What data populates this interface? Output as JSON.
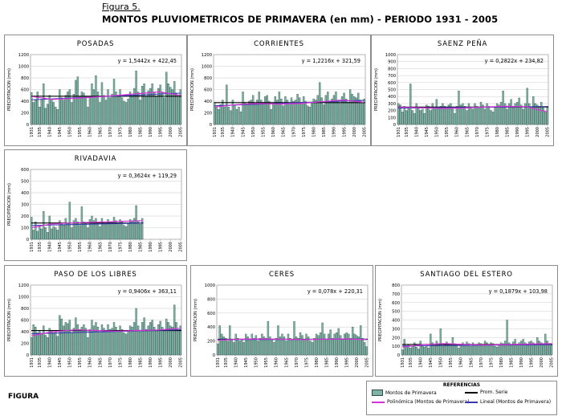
{
  "figure_label": "Figura 5.",
  "title": "MONTOS PLUVIOMETRICOS DE PRIMAVERA (en mm) - PERIODO 1931 - 2005",
  "footer_label": "FIGURA",
  "colors": {
    "bar_fill": "#7fb3a6",
    "bar_stroke": "#2d4e47",
    "mean_line": "#000000",
    "poly_line": "#d633d6",
    "linear_line": "#3a3ab0",
    "grid": "#bfbfbf"
  },
  "legend": {
    "title": "REFERENCIAS",
    "items": [
      {
        "label": "Montos de Primavera",
        "symbol": "bar"
      },
      {
        "label": "Prom. Serie",
        "symbol": "line-black"
      },
      {
        "label": "Polinómica (Montos de Primavera)",
        "symbol": "line-magenta"
      },
      {
        "label": "Lineal (Montos de Primavera)",
        "symbol": "line-blue"
      }
    ]
  },
  "chart_data": [
    {
      "type": "bar",
      "title": "POSADAS",
      "ylabel": "PRECIPITACION (mm)",
      "equation": "y = 1,5442x + 422,45",
      "ylim": [
        0,
        1200
      ],
      "yticks": [
        0,
        200,
        400,
        600,
        800,
        1000,
        1200
      ],
      "xticks": [
        "1931",
        "1935",
        "1940",
        "1945",
        "1950",
        "1955",
        "1960",
        "1965",
        "1970",
        "1975",
        "1980",
        "1985",
        "1990",
        "1995",
        "2000",
        "2005"
      ],
      "start_year": 1931,
      "values": [
        550,
        380,
        420,
        560,
        300,
        430,
        700,
        280,
        350,
        500,
        420,
        380,
        300,
        260,
        600,
        460,
        420,
        500,
        560,
        600,
        380,
        520,
        760,
        820,
        480,
        560,
        540,
        480,
        300,
        480,
        700,
        600,
        840,
        560,
        380,
        720,
        500,
        420,
        600,
        460,
        520,
        780,
        560,
        480,
        600,
        460,
        400,
        380,
        440,
        560,
        500,
        620,
        920,
        560,
        420,
        660,
        700,
        480,
        580,
        620,
        700,
        560,
        480,
        620,
        680,
        560,
        460,
        900,
        700,
        640,
        600,
        740,
        540,
        480,
        600
      ],
      "mean": 485,
      "linear": [
        424,
        538
      ],
      "poly": [
        480,
        430,
        450,
        470,
        500,
        530,
        560,
        500
      ]
    },
    {
      "type": "bar",
      "title": "CORRIENTES",
      "ylabel": "PRECIPITACION (mm)",
      "equation": "y = 1,2216x + 321,59",
      "ylim": [
        0,
        1200
      ],
      "yticks": [
        0,
        200,
        400,
        600,
        800,
        1000,
        1200
      ],
      "xticks": [
        "1931",
        "1935",
        "1940",
        "1945",
        "1950",
        "1955",
        "1960",
        "1965",
        "1970",
        "1975",
        "1980",
        "1985",
        "1990",
        "1995",
        "2000",
        "2005"
      ],
      "start_year": 1931,
      "values": [
        380,
        300,
        260,
        340,
        420,
        300,
        680,
        300,
        240,
        420,
        320,
        260,
        300,
        220,
        560,
        380,
        340,
        400,
        420,
        500,
        340,
        420,
        560,
        420,
        380,
        480,
        500,
        400,
        260,
        360,
        480,
        420,
        560,
        440,
        320,
        480,
        420,
        340,
        460,
        400,
        420,
        520,
        460,
        380,
        480,
        400,
        320,
        300,
        360,
        440,
        420,
        500,
        720,
        460,
        340,
        500,
        560,
        380,
        440,
        500,
        560,
        420,
        360,
        480,
        540,
        440,
        380,
        600,
        520,
        480,
        460,
        540,
        420,
        380,
        440
      ],
      "mean": 375,
      "linear": [
        322,
        414
      ],
      "poly": [
        300,
        340,
        360,
        350,
        360,
        390,
        420,
        380
      ]
    },
    {
      "type": "bar",
      "title": "SAENZ PEÑA",
      "ylabel": "PRECIPITACION (mm)",
      "equation": "y = 0,2822x + 234,82",
      "ylim": [
        0,
        1000
      ],
      "yticks": [
        0,
        100,
        200,
        300,
        400,
        500,
        600,
        700,
        800,
        900,
        1000
      ],
      "xticks": [
        "1931",
        "1935",
        "1940",
        "1945",
        "1950",
        "1955",
        "1960",
        "1965",
        "1970",
        "1975",
        "1980",
        "1985",
        "1990",
        "1995",
        "2000",
        "2005"
      ],
      "start_year": 1931,
      "values": [
        300,
        280,
        180,
        260,
        200,
        240,
        580,
        200,
        160,
        300,
        240,
        200,
        220,
        160,
        280,
        260,
        200,
        300,
        240,
        360,
        220,
        260,
        300,
        260,
        240,
        280,
        300,
        240,
        160,
        260,
        480,
        280,
        300,
        260,
        200,
        300,
        240,
        220,
        300,
        260,
        240,
        320,
        280,
        220,
        300,
        260,
        200,
        180,
        240,
        300,
        280,
        320,
        480,
        300,
        220,
        300,
        360,
        240,
        300,
        320,
        380,
        280,
        220,
        300,
        520,
        300,
        240,
        400,
        300,
        280,
        260,
        320,
        240,
        180,
        260
      ],
      "mean": 250,
      "linear": [
        235,
        256
      ],
      "poly": [
        250,
        240,
        230,
        235,
        250,
        260,
        255,
        180
      ]
    },
    {
      "type": "bar",
      "title": "RIVADAVIA",
      "ylabel": "PRECIPITACION (mm)",
      "equation": "y = 0,3624x + 119,29",
      "ylim": [
        0,
        600
      ],
      "yticks": [
        0,
        100,
        200,
        300,
        400,
        500,
        600
      ],
      "xticks": [
        "1931",
        "1935",
        "1940",
        "1945",
        "1950",
        "1955",
        "1960",
        "1965",
        "1970",
        "1975",
        "1980",
        "1985",
        "1990",
        "1995",
        "2000",
        "2005"
      ],
      "start_year": 1931,
      "values": [
        190,
        80,
        150,
        70,
        110,
        90,
        240,
        100,
        60,
        200,
        90,
        110,
        100,
        80,
        160,
        130,
        120,
        180,
        140,
        320,
        100,
        160,
        180,
        150,
        120,
        280,
        150,
        140,
        100,
        170,
        200,
        160,
        180,
        140,
        110,
        180,
        140,
        130,
        170,
        150,
        150,
        190,
        160,
        140,
        170,
        150,
        120,
        110,
        140,
        170,
        160,
        180,
        290,
        160,
        130,
        180
      ],
      "mean": 140,
      "linear": [
        119,
        140
      ],
      "poly": [
        100,
        130,
        140,
        145,
        150,
        155,
        160
      ]
    },
    {
      "type": "bar",
      "title": "PASO DE LOS LIBRES",
      "ylabel": "PRECIPITACION (mm)",
      "equation": "y = 0,9406x + 363,11",
      "ylim": [
        0,
        1200
      ],
      "yticks": [
        0,
        200,
        400,
        600,
        800,
        1000,
        1200
      ],
      "xticks": [
        "1931",
        "1935",
        "1940",
        "1945",
        "1950",
        "1955",
        "1960",
        "1965",
        "1970",
        "1975",
        "1980",
        "1985",
        "1990",
        "1995",
        "2000",
        "2005"
      ],
      "start_year": 1931,
      "values": [
        300,
        520,
        480,
        380,
        420,
        360,
        500,
        340,
        300,
        460,
        420,
        380,
        400,
        320,
        680,
        620,
        500,
        560,
        540,
        600,
        380,
        460,
        640,
        520,
        440,
        480,
        520,
        460,
        300,
        440,
        600,
        500,
        560,
        480,
        380,
        520,
        460,
        420,
        520,
        440,
        460,
        560,
        480,
        420,
        500,
        440,
        380,
        360,
        420,
        500,
        480,
        560,
        800,
        500,
        400,
        560,
        640,
        440,
        500,
        560,
        600,
        480,
        420,
        520,
        580,
        480,
        420,
        620,
        560,
        500,
        480,
        860,
        560,
        420,
        500
      ],
      "mean": 420,
      "linear": [
        364,
        434
      ],
      "poly": [
        330,
        400,
        430,
        420,
        410,
        420,
        430,
        460
      ]
    },
    {
      "type": "bar",
      "title": "CERES",
      "ylabel": "PRECIPITACION (mm)",
      "equation": "y = 0,078x + 220,31",
      "ylim": [
        0,
        1000
      ],
      "yticks": [
        0,
        200,
        400,
        600,
        800,
        1000
      ],
      "xticks": [
        "1931",
        "1935",
        "1940",
        "1945",
        "1950",
        "1955",
        "1960",
        "1965",
        "1970",
        "1975",
        "1980",
        "1985",
        "1990",
        "1995",
        "2000",
        "2005"
      ],
      "start_year": 1931,
      "values": [
        160,
        420,
        300,
        260,
        240,
        200,
        420,
        220,
        180,
        300,
        240,
        200,
        220,
        180,
        300,
        260,
        220,
        300,
        240,
        280,
        200,
        240,
        300,
        260,
        240,
        480,
        260,
        220,
        180,
        240,
        420,
        260,
        300,
        260,
        200,
        300,
        240,
        220,
        480,
        260,
        240,
        320,
        280,
        220,
        300,
        260,
        200,
        180,
        240,
        300,
        280,
        320,
        460,
        300,
        220,
        300,
        360,
        240,
        300,
        320,
        380,
        280,
        220,
        300,
        320,
        300,
        240,
        400,
        300,
        280,
        260,
        420,
        240,
        180,
        120
      ],
      "mean": 225,
      "linear": [
        220,
        226
      ],
      "poly": [
        210,
        225,
        230,
        225,
        220,
        225,
        230,
        220
      ]
    },
    {
      "type": "bar",
      "title": "SANTIAGO DEL ESTERO",
      "ylabel": "PRECIPITACION (mm)",
      "equation": "y = 0,1879x + 103,98",
      "ylim": [
        0,
        800
      ],
      "yticks": [
        0,
        100,
        200,
        300,
        400,
        500,
        600,
        700,
        800
      ],
      "xticks": [
        "1931",
        "1935",
        "1940",
        "1945",
        "1950",
        "1955",
        "1960",
        "1965",
        "1970",
        "1975",
        "1980",
        "1985",
        "1990",
        "1995",
        "2000",
        "2005"
      ],
      "start_year": 1931,
      "values": [
        60,
        180,
        100,
        120,
        80,
        100,
        140,
        90,
        70,
        160,
        100,
        90,
        110,
        80,
        240,
        140,
        110,
        160,
        130,
        300,
        100,
        130,
        150,
        120,
        110,
        200,
        130,
        110,
        80,
        120,
        140,
        120,
        150,
        130,
        100,
        140,
        120,
        110,
        140,
        130,
        120,
        160,
        140,
        110,
        140,
        130,
        100,
        90,
        120,
        140,
        130,
        160,
        400,
        140,
        110,
        150,
        180,
        120,
        140,
        160,
        180,
        140,
        110,
        150,
        160,
        140,
        120,
        200,
        160,
        140,
        130,
        240,
        160,
        110,
        130
      ],
      "mean": 120,
      "linear": [
        104,
        118
      ],
      "poly": [
        90,
        120,
        130,
        120,
        115,
        120,
        125,
        130
      ]
    }
  ]
}
